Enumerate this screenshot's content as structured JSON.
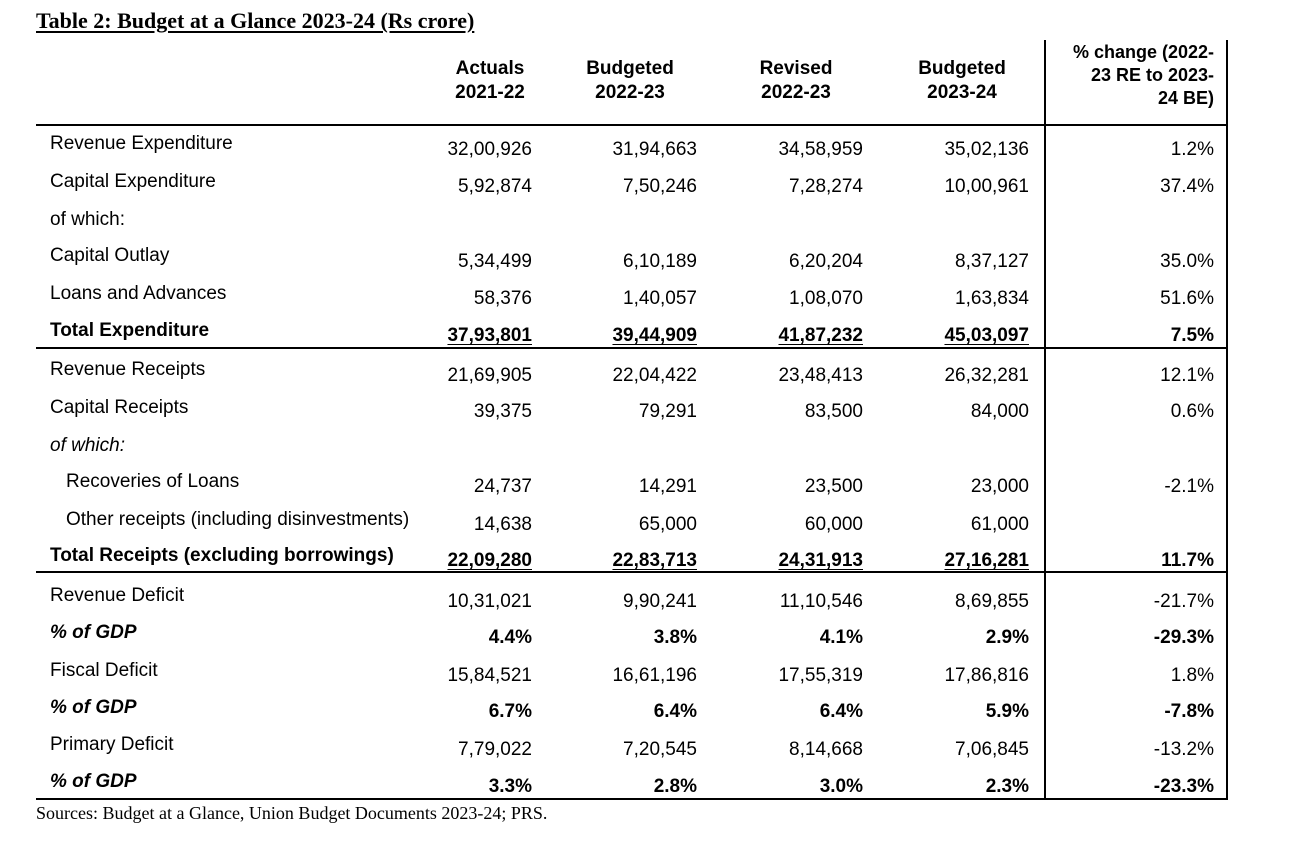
{
  "title": "Table 2: Budget at a Glance 2023-24 (Rs crore)",
  "headers": [
    [
      "Actuals",
      "2021-22"
    ],
    [
      "Budgeted",
      "2022-23"
    ],
    [
      "Revised",
      "2022-23"
    ],
    [
      "Budgeted",
      "2023-24"
    ],
    [
      "% change (2022-",
      "23 RE to 2023-",
      "24 BE)"
    ]
  ],
  "rows": [
    {
      "label": "Revenue Expenditure",
      "values": [
        "32,00,926",
        "31,94,663",
        "34,58,959",
        "35,02,136",
        "1.2%"
      ]
    },
    {
      "label": "Capital Expenditure",
      "values": [
        "5,92,874",
        "7,50,246",
        "7,28,274",
        "10,00,961",
        "37.4%"
      ]
    },
    {
      "label": "of which:",
      "values": [
        "",
        "",
        "",
        "",
        ""
      ]
    },
    {
      "label": "Capital Outlay",
      "values": [
        "5,34,499",
        "6,10,189",
        "6,20,204",
        "8,37,127",
        "35.0%"
      ]
    },
    {
      "label": "Loans and Advances",
      "values": [
        "58,376",
        "1,40,057",
        "1,08,070",
        "1,63,834",
        "51.6%"
      ]
    },
    {
      "label": "Total Expenditure",
      "values": [
        "37,93,801",
        "39,44,909",
        "41,87,232",
        "45,03,097",
        "7.5%"
      ]
    },
    {
      "label": "Revenue Receipts",
      "values": [
        "21,69,905",
        "22,04,422",
        "23,48,413",
        "26,32,281",
        "12.1%"
      ]
    },
    {
      "label": "Capital Receipts",
      "values": [
        "39,375",
        "79,291",
        "83,500",
        "84,000",
        "0.6%"
      ]
    },
    {
      "label": "of which:",
      "values": [
        "",
        "",
        "",
        "",
        ""
      ]
    },
    {
      "label": "Recoveries of Loans",
      "values": [
        "24,737",
        "14,291",
        "23,500",
        "23,000",
        "-2.1%"
      ]
    },
    {
      "label": "Other receipts (including disinvestments)",
      "values": [
        "14,638",
        "65,000",
        "60,000",
        "61,000",
        ""
      ]
    },
    {
      "label": "Total Receipts (excluding borrowings)",
      "values": [
        "22,09,280",
        "22,83,713",
        "24,31,913",
        "27,16,281",
        "11.7%"
      ]
    },
    {
      "label": "Revenue Deficit",
      "values": [
        "10,31,021",
        "9,90,241",
        "11,10,546",
        "8,69,855",
        "-21.7%"
      ]
    },
    {
      "label": "% of GDP",
      "values": [
        "4.4%",
        "3.8%",
        "4.1%",
        "2.9%",
        "-29.3%"
      ]
    },
    {
      "label": "Fiscal Deficit",
      "values": [
        "15,84,521",
        "16,61,196",
        "17,55,319",
        "17,86,816",
        "1.8%"
      ]
    },
    {
      "label": "% of GDP",
      "values": [
        "6.7%",
        "6.4%",
        "6.4%",
        "5.9%",
        "-7.8%"
      ]
    },
    {
      "label": "Primary Deficit",
      "values": [
        "7,79,022",
        "7,20,545",
        "8,14,668",
        "7,06,845",
        "-13.2%"
      ]
    },
    {
      "label": "% of GDP",
      "values": [
        "3.3%",
        "2.8%",
        "3.0%",
        "2.3%",
        "-23.3%"
      ]
    }
  ],
  "source": "Sources: Budget at a Glance, Union Budget Documents 2023-24; PRS."
}
